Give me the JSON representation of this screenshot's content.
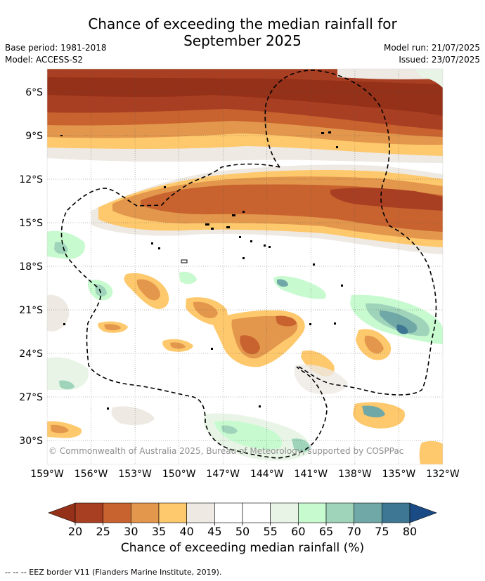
{
  "title": {
    "line1": "Chance of exceeding the median rainfall for",
    "line2": "September 2025"
  },
  "meta": {
    "base_period": "Base period: 1981-2018",
    "model": "Model: ACCESS-S2",
    "model_run": "Model run: 21/07/2025",
    "issued": "Issued: 23/07/2025"
  },
  "map": {
    "lat_labels": [
      "6°S",
      "9°S",
      "12°S",
      "15°S",
      "18°S",
      "21°S",
      "24°S",
      "27°S",
      "30°S"
    ],
    "lat_values": [
      -6,
      -9,
      -12,
      -15,
      -18,
      -21,
      -24,
      -27,
      -30
    ],
    "lon_labels": [
      "159°W",
      "156°W",
      "153°W",
      "150°W",
      "147°W",
      "144°W",
      "141°W",
      "138°W",
      "135°W",
      "132°W"
    ],
    "lon_values": [
      -159,
      -156,
      -153,
      -150,
      -147,
      -144,
      -141,
      -138,
      -135,
      -132
    ],
    "copyright": "© Commonwealth of Australia 2025, Bureau of Meteorology, supported by COSPPac",
    "palette": {
      "lt25": "#a93f22",
      "p25_30": "#c8632f",
      "p30_35": "#e3974c",
      "p35_40": "#fec86c",
      "p40_45": "#eee9e3",
      "p45_55": "#ffffff",
      "p55_60": "#e8f5e6",
      "p60_65": "#c8fad0",
      "p65_70": "#9fd4bb",
      "p70_75": "#6fa8a6",
      "p75_80": "#3e7793",
      "gt80": "#1a4b84",
      "dark_brown": "#943118"
    }
  },
  "colorbar": {
    "ticks": [
      "20",
      "25",
      "30",
      "35",
      "40",
      "45",
      "50",
      "55",
      "60",
      "65",
      "70",
      "75",
      "80"
    ],
    "colors": [
      "#a93f22",
      "#c8632f",
      "#e3974c",
      "#fec86c",
      "#eee9e3",
      "#ffffff",
      "#ffffff",
      "#e8f5e6",
      "#c8fad0",
      "#9fd4bb",
      "#6fa8a6",
      "#3e7793"
    ],
    "under_color": "#943118",
    "over_color": "#1a4b84",
    "label": "Chance of exceeding median rainfall (%)"
  },
  "footer": "--  --  -- EEZ border V11 (Flanders Marine Institute, 2019)."
}
